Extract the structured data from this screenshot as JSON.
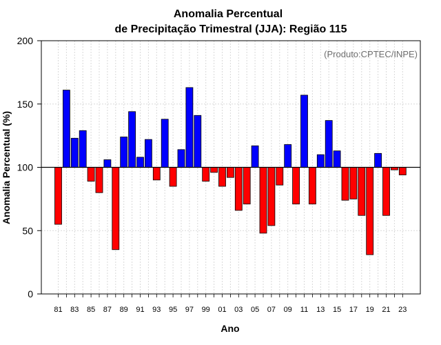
{
  "chart_data": {
    "type": "bar",
    "title": [
      "Anomalia Percentual",
      "de Precipitação Trimestral (JJA): Região 115"
    ],
    "xlabel": "Ano",
    "ylabel": "Anomalia Percentual (%)",
    "annotation": "(Produto:CPTEC/INPE)",
    "ylim": [
      0,
      200
    ],
    "yticks": [
      "0",
      "50",
      "100",
      "150",
      "200"
    ],
    "baseline": 100,
    "above_color": "#0000ff",
    "below_color": "#ff0000",
    "categories": [
      "81",
      "82",
      "83",
      "84",
      "85",
      "86",
      "87",
      "88",
      "89",
      "90",
      "91",
      "92",
      "93",
      "94",
      "95",
      "96",
      "97",
      "98",
      "99",
      "00",
      "01",
      "02",
      "03",
      "04",
      "05",
      "06",
      "07",
      "08",
      "09",
      "10",
      "11",
      "12",
      "13",
      "14",
      "15",
      "16",
      "17",
      "18",
      "19",
      "20",
      "21",
      "22",
      "23"
    ],
    "xtick_labels": [
      "81",
      "83",
      "85",
      "87",
      "89",
      "91",
      "93",
      "95",
      "97",
      "99",
      "01",
      "03",
      "05",
      "07",
      "09",
      "11",
      "13",
      "15",
      "17",
      "19",
      "21",
      "23"
    ],
    "values": [
      55,
      161,
      123,
      129,
      89,
      80,
      106,
      35,
      124,
      144,
      108,
      122,
      90,
      138,
      85,
      114,
      163,
      141,
      89,
      96,
      85,
      92,
      66,
      71,
      117,
      48,
      54,
      86,
      118,
      71,
      157,
      71,
      110,
      137,
      113,
      74,
      75,
      62,
      31,
      111,
      62,
      98,
      94
    ]
  }
}
